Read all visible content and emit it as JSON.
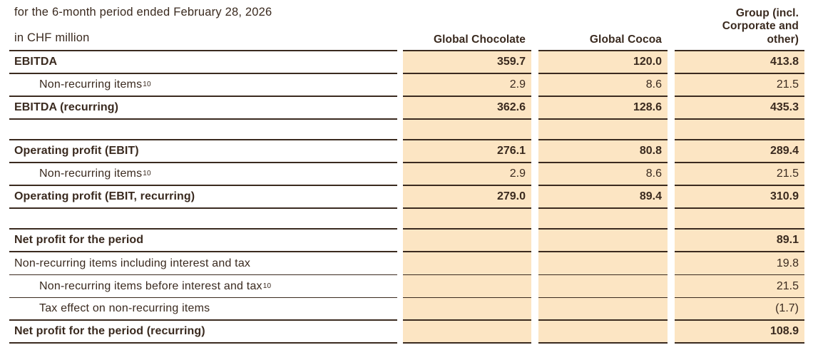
{
  "header": {
    "period_line": "for the 6-month period ended February 28, 2026",
    "unit_line": "in CHF million",
    "columns": [
      {
        "label": "Global Chocolate"
      },
      {
        "label": "Global Cocoa"
      },
      {
        "label": "Group (incl. Corporate and other)"
      }
    ]
  },
  "table": {
    "rows": [
      {
        "label": "EBITDA",
        "bold": true,
        "values": [
          "359.7",
          "120.0",
          "413.8"
        ]
      },
      {
        "label": "Non-recurring items",
        "sup": "10",
        "indent": true,
        "values": [
          "2.9",
          "8.6",
          "21.5"
        ]
      },
      {
        "label": "EBITDA (recurring)",
        "bold": true,
        "values": [
          "362.6",
          "128.6",
          "435.3"
        ]
      },
      {
        "spacer": true
      },
      {
        "label": "Operating profit (EBIT)",
        "bold": true,
        "values": [
          "276.1",
          "80.8",
          "289.4"
        ]
      },
      {
        "label": "Non-recurring items",
        "sup": "10",
        "indent": true,
        "values": [
          "2.9",
          "8.6",
          "21.5"
        ]
      },
      {
        "label": "Operating profit (EBIT, recurring)",
        "bold": true,
        "values": [
          "279.0",
          "89.4",
          "310.9"
        ]
      },
      {
        "spacer": true
      },
      {
        "label": "Net profit for the period",
        "bold": true,
        "values": [
          "",
          "",
          "89.1"
        ]
      },
      {
        "label": "Non-recurring items including interest and tax",
        "values": [
          "",
          "",
          "19.8"
        ],
        "line": "thin"
      },
      {
        "label": "Non-recurring items before interest and tax",
        "sup": "10",
        "indent": true,
        "values": [
          "",
          "",
          "21.5"
        ],
        "line": "thin"
      },
      {
        "label": "Tax effect on non-recurring items",
        "indent": true,
        "values": [
          "",
          "",
          "(1.7)"
        ]
      },
      {
        "label": "Net profit for the period (recurring)",
        "bold": true,
        "values": [
          "",
          "",
          "108.9"
        ]
      }
    ]
  },
  "colors": {
    "text": "#3a2a1f",
    "line": "#3a2a1f",
    "cell_background": "#fce5c3",
    "page_background": "#ffffff"
  }
}
